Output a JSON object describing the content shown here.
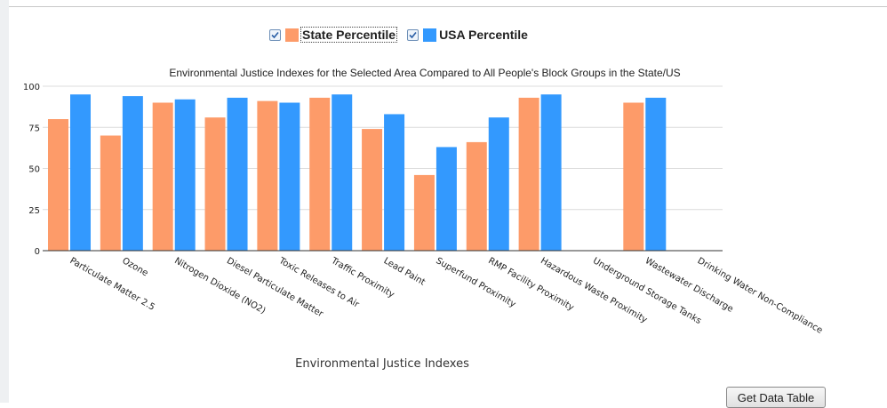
{
  "legend": {
    "items": [
      {
        "name": "State Percentile",
        "color": "#fd9b69",
        "checked": true
      },
      {
        "name": "USA Percentile",
        "color": "#3399fe",
        "checked": true
      }
    ]
  },
  "button": {
    "label": "Get Data Table"
  },
  "chart_data": {
    "type": "bar",
    "title": "Environmental Justice Indexes for the Selected Area Compared to All People's Block Groups in the State/US",
    "xlabel": "Environmental Justice Indexes",
    "ylabel": "",
    "ylim": [
      0,
      100
    ],
    "yticks": [
      0,
      25,
      50,
      75,
      100
    ],
    "grid": true,
    "legend_position": "top-center",
    "categories": [
      "Particulate Matter 2.5",
      "Ozone",
      "Nitrogen Dioxide (NO2)",
      "Diesel Particulate Matter",
      "Toxic Releases to Air",
      "Traffic Proximity",
      "Lead Paint",
      "Superfund Proximity",
      "RMP Facility Proximity",
      "Hazardous Waste Proximity",
      "Underground Storage Tanks",
      "Wastewater Discharge",
      "Drinking Water Non-Compliance"
    ],
    "series": [
      {
        "name": "State Percentile",
        "color": "#fd9b69",
        "values": [
          80,
          70,
          90,
          81,
          91,
          93,
          74,
          46,
          66,
          93,
          null,
          90,
          null
        ]
      },
      {
        "name": "USA Percentile",
        "color": "#3399fe",
        "values": [
          95,
          94,
          92,
          93,
          90,
          95,
          83,
          63,
          81,
          95,
          null,
          93,
          null
        ]
      }
    ]
  }
}
